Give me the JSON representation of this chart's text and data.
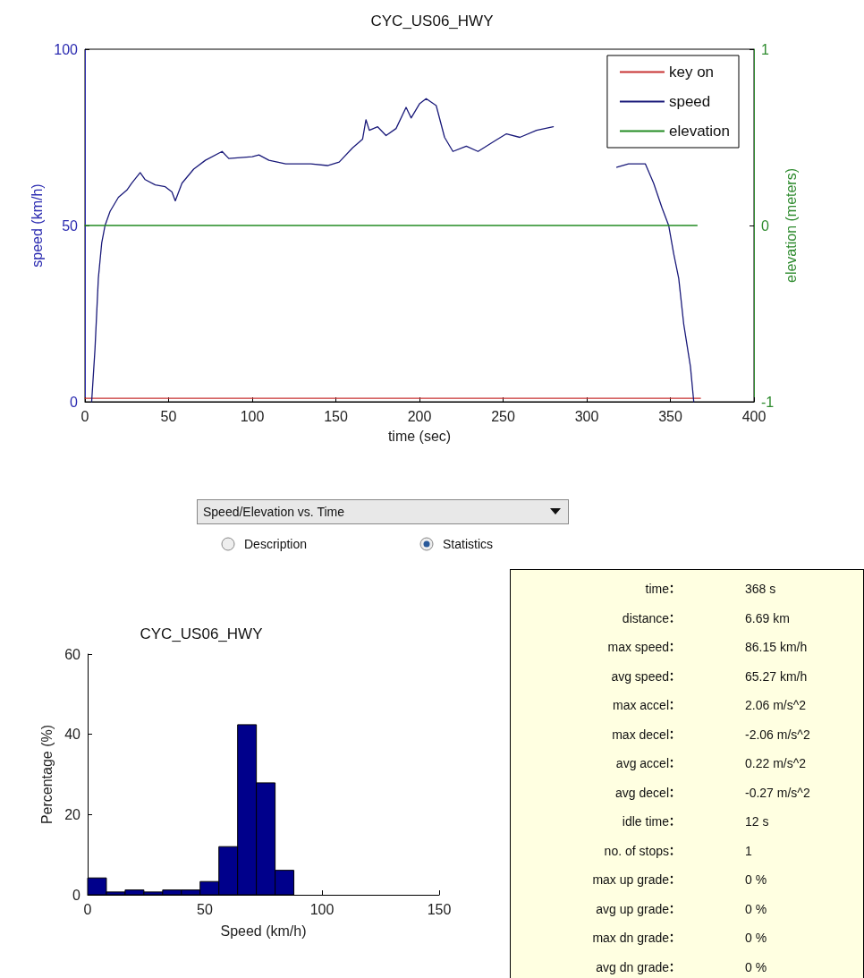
{
  "chart_data": [
    {
      "type": "line",
      "title": "CYC_US06_HWY",
      "xlabel": "time (sec)",
      "ylabel": "speed (km/h)",
      "y2label": "elevation (meters)",
      "xlim": [
        0,
        400
      ],
      "xticks": [
        0,
        50,
        100,
        150,
        200,
        250,
        300,
        350,
        400
      ],
      "ylim": [
        0,
        100
      ],
      "yticks": [
        0,
        50,
        100
      ],
      "y2lim": [
        -1,
        1
      ],
      "y2ticks": [
        -1,
        0,
        1
      ],
      "grid": false,
      "legend": "top right",
      "marker": "none",
      "line_style": "solid",
      "series": [
        {
          "name": "key on",
          "color": "#c83232",
          "x": [
            0,
            368
          ],
          "values": [
            1,
            1
          ]
        },
        {
          "name": "speed",
          "color": "#1a1a7a",
          "x": [
            4,
            6,
            8,
            10,
            12,
            15,
            20,
            25,
            28,
            33,
            36,
            42,
            48,
            52,
            54,
            58,
            65,
            72,
            82,
            86,
            100,
            104,
            110,
            120,
            135,
            145,
            152,
            160,
            166,
            168,
            170,
            175,
            180,
            186,
            192,
            195,
            200,
            204,
            210,
            215,
            220,
            228,
            235,
            245,
            252,
            260,
            270,
            280,
            300,
            318,
            325,
            335,
            340,
            345,
            349,
            352,
            355,
            358,
            362,
            364
          ],
          "values": [
            0,
            15,
            35,
            45,
            50,
            54,
            58,
            60,
            62,
            65,
            63,
            61.5,
            61,
            59.5,
            57,
            62,
            66,
            68.5,
            71,
            69,
            69.5,
            70,
            68.5,
            67.5,
            67.5,
            67,
            68,
            72,
            74.5,
            80,
            77,
            78,
            75.5,
            77.5,
            83.5,
            80.5,
            84.5,
            86,
            84,
            75,
            71,
            72.5,
            71,
            74,
            76,
            75,
            77,
            78,
            null,
            66.5,
            67.5,
            67.5,
            62,
            55,
            50,
            42,
            35,
            22,
            10,
            0
          ]
        },
        {
          "name": "elevation",
          "color": "#228b22",
          "axis": "y2",
          "x": [
            0,
            366
          ],
          "values": [
            0,
            0
          ]
        }
      ]
    },
    {
      "type": "other",
      "annotations": [
        "Speed/Elevation vs. Time",
        "Description",
        "Statistics"
      ]
    },
    {
      "type": "histogram",
      "title": "CYC_US06_HWY",
      "xlabel": "Speed (km/h)",
      "ylabel": "Percentage (%)",
      "xlim": [
        0,
        150
      ],
      "xticks": [
        0,
        50,
        100,
        150
      ],
      "ylim": [
        0,
        60
      ],
      "yticks": [
        0,
        20,
        40,
        60
      ],
      "grid": false,
      "color": "#00008b",
      "bins": [
        0,
        8,
        16,
        24,
        32,
        40,
        48,
        56,
        64,
        72,
        80,
        88
      ],
      "values": [
        4.2,
        0.7,
        1.2,
        0.7,
        1.2,
        1.2,
        3.3,
        12,
        42.4,
        27.9,
        6.1
      ]
    },
    {
      "type": "other",
      "categories": [
        "time",
        "distance",
        "max speed",
        "avg speed",
        "max accel",
        "max decel",
        "avg accel",
        "avg decel",
        "idle time",
        "no. of stops",
        "max up grade",
        "avg up grade",
        "max dn grade",
        "avg dn grade"
      ],
      "value_labels": [
        "368 s",
        "6.69 km",
        "86.15 km/h",
        "65.27 km/h",
        "2.06 m/s^2",
        "-2.06 m/s^2",
        "0.22 m/s^2",
        "-0.27 m/s^2",
        "12 s",
        "1",
        "0 %",
        "0 %",
        "0 %",
        "0 %"
      ]
    }
  ]
}
